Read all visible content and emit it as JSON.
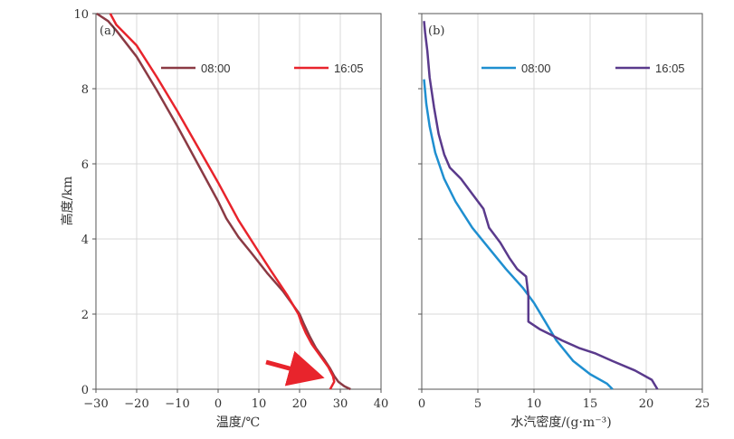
{
  "chart_data": [
    {
      "type": "line",
      "panel_label": "(a)",
      "xlabel": "温度/℃",
      "ylabel": "高度/km",
      "xlim": [
        -30,
        40
      ],
      "ylim": [
        0,
        10
      ],
      "x_ticks": [
        "−30",
        "−20",
        "−10",
        "0",
        "10",
        "20",
        "30",
        "40"
      ],
      "y_ticks": [
        "0",
        "2",
        "4",
        "6",
        "8",
        "10"
      ],
      "grid": true,
      "legend_position": "top",
      "annotation": "red arrow pointing to low-level temperature inversion near 0.2–0.3 km",
      "series": [
        {
          "name": "08:00",
          "color": "#8b3a44",
          "points": [
            [
              32.5,
              0.0
            ],
            [
              31.0,
              0.08
            ],
            [
              29.5,
              0.2
            ],
            [
              28.5,
              0.35
            ],
            [
              27.5,
              0.55
            ],
            [
              26.0,
              0.8
            ],
            [
              24.0,
              1.1
            ],
            [
              22.5,
              1.4
            ],
            [
              21.0,
              1.75
            ],
            [
              20.0,
              2.0
            ],
            [
              16.0,
              2.6
            ],
            [
              12.0,
              3.1
            ],
            [
              8.0,
              3.65
            ],
            [
              5.0,
              4.05
            ],
            [
              2.0,
              4.55
            ],
            [
              0.0,
              5.0
            ],
            [
              -5.0,
              6.0
            ],
            [
              -10.0,
              7.0
            ],
            [
              -15.0,
              7.95
            ],
            [
              -20.0,
              8.85
            ],
            [
              -25.0,
              9.55
            ],
            [
              -27.0,
              9.8
            ],
            [
              -29.8,
              10.0
            ]
          ]
        },
        {
          "name": "16:05",
          "color": "#e8242c",
          "points": [
            [
              27.5,
              0.0
            ],
            [
              28.5,
              0.2
            ],
            [
              28.2,
              0.35
            ],
            [
              27.0,
              0.6
            ],
            [
              25.0,
              0.9
            ],
            [
              23.0,
              1.2
            ],
            [
              21.5,
              1.5
            ],
            [
              20.5,
              1.75
            ],
            [
              19.7,
              2.0
            ],
            [
              17.0,
              2.5
            ],
            [
              13.0,
              3.15
            ],
            [
              10.0,
              3.65
            ],
            [
              5.0,
              4.5
            ],
            [
              0.0,
              5.5
            ],
            [
              -5.0,
              6.45
            ],
            [
              -10.0,
              7.4
            ],
            [
              -15.0,
              8.3
            ],
            [
              -20.0,
              9.15
            ],
            [
              -25.0,
              9.7
            ],
            [
              -26.5,
              10.0
            ]
          ]
        }
      ]
    },
    {
      "type": "line",
      "panel_label": "(b)",
      "xlabel": "水汽密度/(g·m⁻³)",
      "ylabel": "",
      "xlim": [
        0,
        25
      ],
      "ylim": [
        0,
        10
      ],
      "x_ticks": [
        "0",
        "5",
        "10",
        "15",
        "20",
        "25"
      ],
      "y_ticks": [
        "0",
        "2",
        "4",
        "6",
        "8",
        "10"
      ],
      "grid": true,
      "legend_position": "top",
      "series": [
        {
          "name": "08:00",
          "color": "#1f8fd0",
          "points": [
            [
              17.0,
              0.0
            ],
            [
              16.5,
              0.15
            ],
            [
              15.0,
              0.4
            ],
            [
              13.5,
              0.75
            ],
            [
              12.0,
              1.3
            ],
            [
              11.0,
              1.8
            ],
            [
              10.0,
              2.3
            ],
            [
              9.0,
              2.7
            ],
            [
              7.5,
              3.2
            ],
            [
              6.0,
              3.75
            ],
            [
              4.5,
              4.3
            ],
            [
              3.0,
              5.0
            ],
            [
              2.0,
              5.6
            ],
            [
              1.2,
              6.3
            ],
            [
              0.7,
              7.0
            ],
            [
              0.4,
              7.6
            ],
            [
              0.2,
              8.25
            ]
          ]
        },
        {
          "name": "16:05",
          "color": "#5a3a8c",
          "points": [
            [
              21.0,
              0.0
            ],
            [
              20.5,
              0.25
            ],
            [
              19.0,
              0.5
            ],
            [
              17.0,
              0.75
            ],
            [
              15.5,
              0.95
            ],
            [
              14.0,
              1.1
            ],
            [
              12.5,
              1.3
            ],
            [
              11.5,
              1.45
            ],
            [
              10.5,
              1.6
            ],
            [
              9.5,
              1.8
            ],
            [
              9.5,
              2.1
            ],
            [
              9.5,
              2.5
            ],
            [
              9.3,
              3.0
            ],
            [
              8.5,
              3.2
            ],
            [
              7.8,
              3.5
            ],
            [
              7.0,
              3.9
            ],
            [
              6.0,
              4.3
            ],
            [
              5.5,
              4.8
            ],
            [
              4.5,
              5.2
            ],
            [
              3.5,
              5.6
            ],
            [
              2.5,
              5.9
            ],
            [
              2.0,
              6.25
            ],
            [
              1.5,
              6.8
            ],
            [
              1.1,
              7.5
            ],
            [
              0.7,
              8.3
            ],
            [
              0.5,
              9.0
            ],
            [
              0.3,
              9.5
            ],
            [
              0.2,
              9.8
            ]
          ]
        }
      ]
    }
  ]
}
